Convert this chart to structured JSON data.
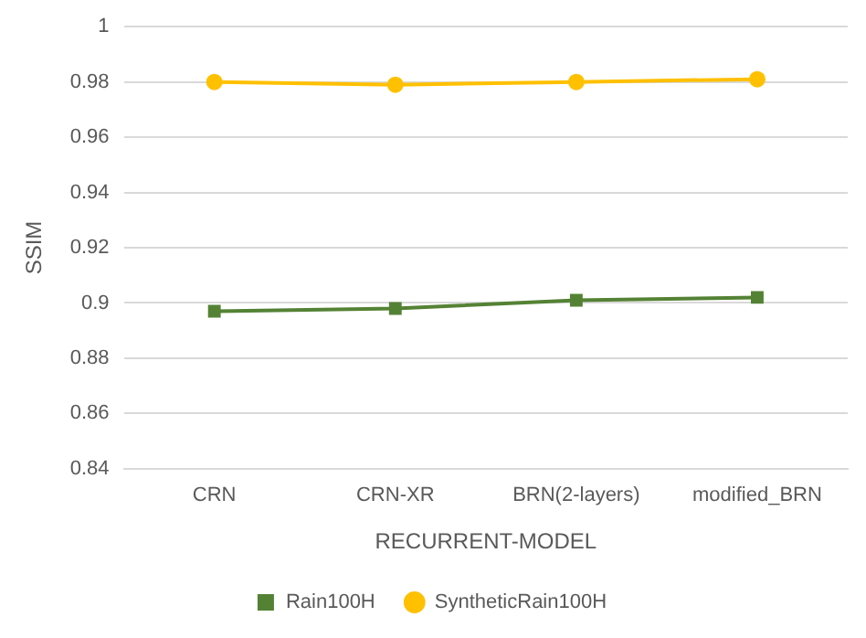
{
  "chart_data": {
    "type": "line",
    "xlabel": "RECURRENT-MODEL",
    "ylabel": "SSIM",
    "categories": [
      "CRN",
      "CRN-XR",
      "BRN(2-layers)",
      "modified_BRN"
    ],
    "series": [
      {
        "name": "Rain100H",
        "color": "#548235",
        "marker": "square",
        "values": [
          0.897,
          0.898,
          0.901,
          0.902
        ]
      },
      {
        "name": "SyntheticRain100H",
        "color": "#ffc000",
        "marker": "circle",
        "values": [
          0.98,
          0.979,
          0.98,
          0.981
        ]
      }
    ],
    "ylim": [
      0.84,
      1
    ],
    "yticks": [
      0.84,
      0.86,
      0.88,
      0.9,
      0.92,
      0.94,
      0.96,
      0.98,
      1
    ],
    "grid": "y",
    "legend": "bottom",
    "line_style": "solid"
  }
}
